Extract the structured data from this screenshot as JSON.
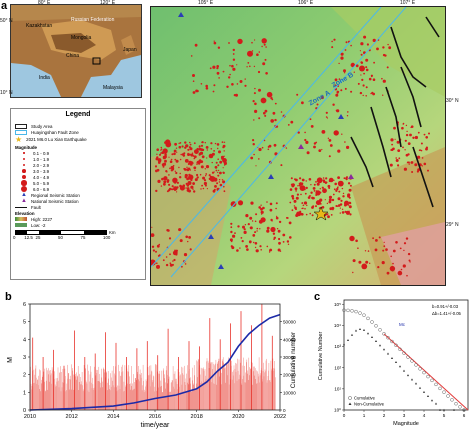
{
  "panel_labels": {
    "a": "a",
    "b": "b",
    "c": "c"
  },
  "inset": {
    "lat_labels": [
      "50° N",
      "10° N"
    ],
    "lon_labels": [
      "80° E",
      "120° E"
    ],
    "countries": [
      "Kazakhstan",
      "Russian Federation",
      "Mongolia",
      "China",
      "India",
      "Japan",
      "Malaysia"
    ]
  },
  "legend": {
    "title": "Legend",
    "items": [
      "Study Area",
      "Huayingshan Fault Zone",
      "2021 M6.0 Lu Xian Earthquake"
    ],
    "magnitude_title": "Magnitude",
    "magnitudes": [
      "0.1 - 0.9",
      "1.0 - 1.9",
      "2.0 - 2.9",
      "3.0 - 3.9",
      "4.0 - 4.9",
      "5.0 - 5.9",
      "6.0 - 6.9"
    ],
    "stations": [
      "Regional Seismic Station",
      "National Seismic Station"
    ],
    "fault": "Fault",
    "elev_title": "Elevation",
    "high": "High: 2227",
    "low": "Low: -2",
    "scale_ticks": [
      "0",
      "12.5",
      "25",
      "50",
      "75",
      "100"
    ],
    "scale_unit": "Km"
  },
  "map": {
    "lon_labels": [
      "105° E",
      "106° E",
      "107° E"
    ],
    "lat_labels": [
      "30° N",
      "29° N"
    ],
    "zones": [
      "Zone B",
      "Zone A"
    ],
    "colors": {
      "zone_line": "#4bb8e8",
      "quake": "#d31b1b",
      "fault": "#111111"
    }
  },
  "chart_b": {
    "xlabel": "time/year",
    "ylabel": "M",
    "y2label": "Cumulative number",
    "chart_data": {
      "type": "line",
      "x_ticks": [
        "2010",
        "2012",
        "2014",
        "2016",
        "2018",
        "2020",
        "2022"
      ],
      "xlim": [
        2010,
        2022
      ],
      "y_ticks": [
        "0",
        "1",
        "2",
        "3",
        "4",
        "5",
        "6"
      ],
      "ylim": [
        0,
        6
      ],
      "y2_ticks": [
        "0",
        "10000",
        "20000",
        "30000",
        "40000",
        "50000"
      ],
      "y2lim": [
        0,
        60000
      ],
      "series": [
        {
          "type": "bar",
          "color": "#e8322b",
          "x": [
            2010.0,
            2010.5,
            2011.0,
            2011.5,
            2012.0,
            2012.5,
            2013.0,
            2013.5,
            2014.0,
            2014.5,
            2015.0,
            2015.5,
            2016.0,
            2016.5,
            2017.0,
            2017.5,
            2018.0,
            2018.5,
            2019.0,
            2019.5,
            2020.0,
            2020.5,
            2021.0,
            2021.5
          ],
          "values": [
            4.1,
            3.0,
            3.4,
            2.5,
            4.5,
            3.0,
            3.2,
            4.4,
            3.8,
            3.0,
            3.5,
            3.9,
            3.1,
            4.6,
            3.0,
            3.9,
            3.6,
            5.2,
            4.0,
            4.9,
            5.6,
            4.8,
            6.0,
            4.2
          ]
        },
        {
          "type": "line",
          "color": "#1c2aa8",
          "x": [
            2010,
            2012,
            2014,
            2015,
            2016,
            2017,
            2018,
            2018.5,
            2019,
            2019.5,
            2020,
            2020.5,
            2021,
            2021.5,
            2022
          ],
          "values": [
            0,
            800,
            2200,
            4000,
            6500,
            8500,
            12000,
            16000,
            22000,
            27000,
            36000,
            43000,
            48000,
            52000,
            54000
          ]
        }
      ]
    }
  },
  "chart_c": {
    "xlabel": "Magnitude",
    "ylabel": "Cumulative Number",
    "mc_label": "Mc",
    "stats": [
      "b=0.91+/-0.03",
      "Δb=1.41+/-0.05"
    ],
    "legend": [
      "Cumulative",
      "Non-Cumulative"
    ],
    "chart_data": {
      "type": "scatter",
      "x_ticks": [
        "0",
        "1",
        "2",
        "3",
        "4",
        "5",
        "6"
      ],
      "xlim": [
        0,
        6.2
      ],
      "y_ticks": [
        "10⁰",
        "10¹",
        "10²",
        "10³",
        "10⁴",
        "10⁵"
      ],
      "ylim_log10": [
        0,
        5.2
      ],
      "series": [
        {
          "name": "Cumulative",
          "x": [
            0.0,
            0.2,
            0.4,
            0.6,
            0.8,
            1.0,
            1.2,
            1.4,
            1.6,
            1.8,
            2.0,
            2.2,
            2.4,
            2.6,
            2.8,
            3.0,
            3.2,
            3.4,
            3.6,
            3.8,
            4.0,
            4.2,
            4.4,
            4.6,
            4.8,
            5.0,
            5.2,
            5.4,
            5.6,
            5.8,
            6.0
          ],
          "log10_y": [
            4.72,
            4.71,
            4.69,
            4.65,
            4.58,
            4.48,
            4.33,
            4.16,
            3.98,
            3.79,
            3.6,
            3.42,
            3.24,
            3.06,
            2.87,
            2.69,
            2.5,
            2.32,
            2.13,
            1.95,
            1.77,
            1.58,
            1.4,
            1.21,
            1.02,
            0.84,
            0.66,
            0.48,
            0.3,
            0.15,
            0.0
          ]
        },
        {
          "name": "Non-Cumulative",
          "x": [
            0.0,
            0.2,
            0.4,
            0.6,
            0.8,
            1.0,
            1.2,
            1.4,
            1.6,
            1.8,
            2.0,
            2.2,
            2.4,
            2.6,
            2.8,
            3.0,
            3.2,
            3.4,
            3.6,
            3.8,
            4.0,
            4.2,
            4.4,
            4.6,
            4.8,
            5.0,
            5.5,
            6.0
          ],
          "log10_y": [
            3.1,
            3.3,
            3.55,
            3.75,
            3.82,
            3.78,
            3.62,
            3.44,
            3.25,
            3.05,
            2.86,
            2.66,
            2.45,
            2.26,
            2.06,
            1.85,
            1.64,
            1.44,
            1.25,
            1.04,
            0.85,
            0.65,
            0.45,
            0.3,
            0.0,
            0.0,
            0.0,
            0.0
          ]
        },
        {
          "name": "fit",
          "x": [
            2.0,
            6.2
          ],
          "log10_y": [
            3.6,
            0.0
          ]
        }
      ]
    }
  }
}
